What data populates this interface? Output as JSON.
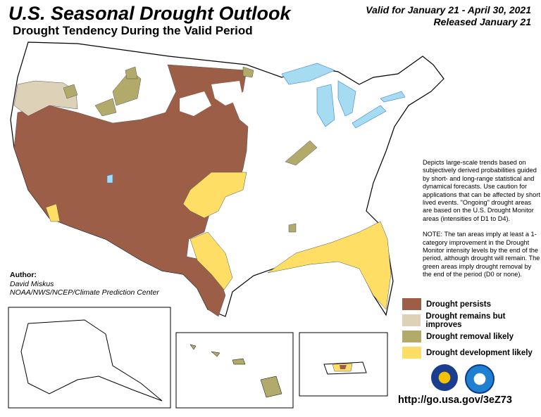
{
  "header": {
    "title": "U.S. Seasonal Drought Outlook",
    "subtitle": "Drought Tendency During the Valid Period",
    "valid": "Valid for January 21 - April 30, 2021",
    "released": "Released January 21"
  },
  "description": {
    "p1": "Depicts large-scale trends based on subjectively derived probabilities guided by short- and long-range statistical and dynamical forecasts. Use caution for applications that can be affected by short lived events. \"Ongoing\" drought areas are based on the U.S. Drought Monitor areas (intensities of D1 to D4).",
    "p2": "NOTE: The tan areas imply at least a 1-category improvement in the Drought Monitor intensity levels by the end of the period, although drought will remain. The green areas imply drought removal by the end of the period (D0 or none)."
  },
  "author": {
    "label": "Author:",
    "name": "David Miskus",
    "org": "NOAA/NWS/NCEP/Climate Prediction Center"
  },
  "legend": [
    {
      "label": "Drought persists",
      "color": "#9c5e47"
    },
    {
      "label": "Drought remains but improves",
      "color": "#ddd1b8"
    },
    {
      "label": "Drought removal likely",
      "color": "#b1aa6b"
    },
    {
      "label": "Drought development likely",
      "color": "#ffde66"
    }
  ],
  "colors": {
    "water": "#a6dcf2",
    "rivers": "#3a7fd6"
  },
  "logos": [
    "noaa-cpc-seal-icon",
    "noaa-logo-icon"
  ],
  "url": "http://go.usa.gov/3eZ73"
}
